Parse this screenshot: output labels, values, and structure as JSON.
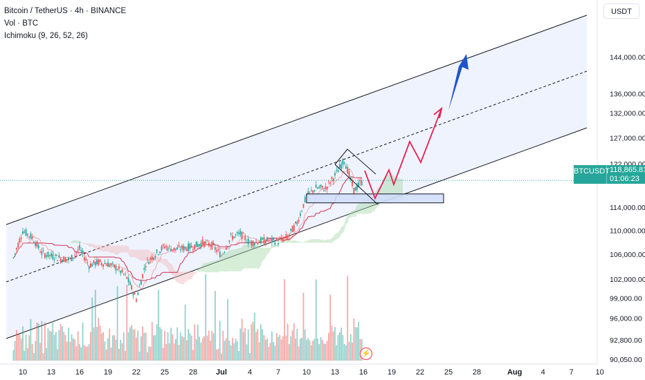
{
  "legend": {
    "symbol_line": "Bitcoin / TetherUS · 4h · BINANCE",
    "volume_line": "Vol · BTC",
    "indicator_line": "Ichimoku (9, 26, 52, 26)"
  },
  "currency_label": "USDT",
  "price_badge": {
    "symbol": "BTCUSDT",
    "price": "118,865.81",
    "countdown": "01:06:23"
  },
  "timer_icon": "lightning-icon",
  "colors": {
    "up": "#26a69a",
    "down": "#ef5350",
    "channel_fill": "#e8eefd",
    "projection": "#e91e4e",
    "target_arrow": "#1e54c8",
    "kumo_up": "#a5d6a7",
    "kumo_down": "#f2b8b8"
  },
  "chart_data": {
    "type": "candlestick",
    "title": "Bitcoin / TetherUS · 4h · BINANCE",
    "y_axis": {
      "ticks": [
        90050,
        92800,
        96000,
        99000,
        102000,
        106000,
        110000,
        114000,
        118000,
        122000,
        127000,
        132000,
        136000,
        144000
      ],
      "tick_labels": [
        "90,050.00",
        "92,800.00",
        "96,000.00",
        "99,000.00",
        "102,000.00",
        "106,000.00",
        "110,000.00",
        "114,000.00",
        "",
        "122,000.00",
        "127,000.00",
        "132,000.00",
        "136,000.00",
        "144,000.00"
      ],
      "scale": "log"
    },
    "x_axis": {
      "ticks": [
        "Jun 10",
        "Jun 13",
        "Jun 16",
        "Jun 19",
        "Jun 22",
        "Jun 25",
        "Jun 28",
        "Jul 1",
        "Jul 4",
        "Jul 7",
        "Jul 10",
        "Jul 13",
        "Jul 16",
        "Jul 19",
        "Jul 22",
        "Jul 25",
        "Jul 28",
        "Aug 1",
        "Aug 4",
        "Aug 7",
        "Aug 10"
      ],
      "tick_labels": [
        "10",
        "13",
        "16",
        "19",
        "22",
        "25",
        "28",
        "Jul",
        "4",
        "7",
        "10",
        "13",
        "16",
        "19",
        "22",
        "25",
        "28",
        "Aug",
        "4",
        "7",
        "10"
      ]
    },
    "price_path": [
      {
        "date": "Jun 9",
        "close": 105400
      },
      {
        "date": "Jun 10",
        "close": 109900
      },
      {
        "date": "Jun 11",
        "close": 108800
      },
      {
        "date": "Jun 12",
        "close": 106200
      },
      {
        "date": "Jun 13",
        "close": 105700
      },
      {
        "date": "Jun 14",
        "close": 105300
      },
      {
        "date": "Jun 15",
        "close": 105100
      },
      {
        "date": "Jun 16",
        "close": 106900
      },
      {
        "date": "Jun 17",
        "close": 104200
      },
      {
        "date": "Jun 18",
        "close": 104700
      },
      {
        "date": "Jun 19",
        "close": 104400
      },
      {
        "date": "Jun 20",
        "close": 103700
      },
      {
        "date": "Jun 21",
        "close": 102200
      },
      {
        "date": "Jun 22",
        "close": 98900
      },
      {
        "date": "Jun 23",
        "close": 104500
      },
      {
        "date": "Jun 24",
        "close": 106000
      },
      {
        "date": "Jun 25",
        "close": 107300
      },
      {
        "date": "Jun 26",
        "close": 106800
      },
      {
        "date": "Jun 27",
        "close": 107000
      },
      {
        "date": "Jun 28",
        "close": 107300
      },
      {
        "date": "Jun 29",
        "close": 107900
      },
      {
        "date": "Jun 30",
        "close": 107500
      },
      {
        "date": "Jul 1",
        "close": 105800
      },
      {
        "date": "Jul 2",
        "close": 108800
      },
      {
        "date": "Jul 3",
        "close": 109400
      },
      {
        "date": "Jul 4",
        "close": 107900
      },
      {
        "date": "Jul 5",
        "close": 108200
      },
      {
        "date": "Jul 6",
        "close": 108300
      },
      {
        "date": "Jul 7",
        "close": 108100
      },
      {
        "date": "Jul 8",
        "close": 108900
      },
      {
        "date": "Jul 9",
        "close": 111300
      },
      {
        "date": "Jul 10",
        "close": 116000
      },
      {
        "date": "Jul 11",
        "close": 117500
      },
      {
        "date": "Jul 12",
        "close": 117400
      },
      {
        "date": "Jul 13",
        "close": 119800
      },
      {
        "date": "Jul 14",
        "close": 122700
      },
      {
        "date": "Jul 15",
        "close": 117000
      },
      {
        "date": "Jul 16",
        "close": 118865.81
      }
    ],
    "volume_scale": "relative",
    "indicators": [
      "Vol · BTC",
      "Ichimoku (9, 26, 52, 26)"
    ],
    "annotations": [
      {
        "kind": "ascending-channel",
        "lines": [
          "upper",
          "midline-dashed",
          "lower"
        ]
      },
      {
        "kind": "support-zone",
        "from": 114800,
        "to": 116400
      },
      {
        "kind": "bull-flag"
      },
      {
        "kind": "projected-path",
        "color": "red"
      },
      {
        "kind": "target-arrow",
        "color": "blue"
      }
    ],
    "last_price": 118865.81,
    "grid": false,
    "legend_position": "top-left"
  }
}
